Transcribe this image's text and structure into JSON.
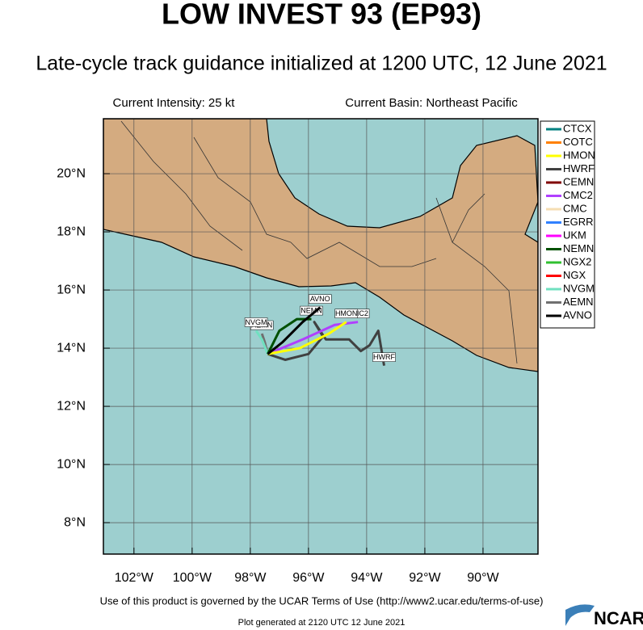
{
  "title": "LOW INVEST 93 (EP93)",
  "subtitle": "Late-cycle track guidance initialized at 1200 UTC, 12 June 2021",
  "intensity": "Current Intensity: 25 kt",
  "basin": "Current Basin: Northeast Pacific",
  "lonlim": [
    -103.05,
    -88.11
  ],
  "latlim": [
    6.92,
    21.89
  ],
  "lonticks": [
    {
      "value": -102,
      "label": "102°W"
    },
    {
      "value": -100,
      "label": "100°W"
    },
    {
      "value": -98,
      "label": "98°W"
    },
    {
      "value": -96,
      "label": "96°W"
    },
    {
      "value": -94,
      "label": "94°W"
    },
    {
      "value": -92,
      "label": "92°W"
    },
    {
      "value": -90,
      "label": "90°W"
    }
  ],
  "latticks": [
    {
      "value": 8,
      "label": "8°N"
    },
    {
      "value": 10,
      "label": "10°N"
    },
    {
      "value": 12,
      "label": "12°N"
    },
    {
      "value": 14,
      "label": "14°N"
    },
    {
      "value": 16,
      "label": "16°N"
    },
    {
      "value": 18,
      "label": "18°N"
    },
    {
      "value": 20,
      "label": "20°N"
    }
  ],
  "models": [
    {
      "name": "CTCX",
      "color": "#008080"
    },
    {
      "name": "COTC",
      "color": "#ff8000"
    },
    {
      "name": "HMON",
      "color": "#ffff00"
    },
    {
      "name": "HWRF",
      "color": "#404040"
    },
    {
      "name": "CEMN",
      "color": "#800000"
    },
    {
      "name": "CMC2",
      "color": "#b040ff"
    },
    {
      "name": "CMC",
      "color": "#f5deb3"
    },
    {
      "name": "EGRR",
      "color": "#3080ff"
    },
    {
      "name": "UKM",
      "color": "#ff00ff"
    },
    {
      "name": "NEMN",
      "color": "#005000"
    },
    {
      "name": "NGX2",
      "color": "#30c030"
    },
    {
      "name": "NGX",
      "color": "#ff0000"
    },
    {
      "name": "NVGM",
      "color": "#70e0c0"
    },
    {
      "name": "AEMN",
      "color": "#707070"
    },
    {
      "name": "AVNO",
      "color": "#000000"
    }
  ],
  "tracks": [
    {
      "model": 3,
      "lon": [
        -97.4,
        -96.8,
        -96.0,
        -95.5,
        -95.8,
        -95.4,
        -94.6,
        -94.2,
        -93.9,
        -93.6,
        -93.4
      ],
      "lat": [
        13.8,
        13.6,
        13.8,
        14.4,
        14.9,
        14.3,
        14.3,
        13.9,
        14.1,
        14.6,
        13.4
      ]
    },
    {
      "model": 13,
      "lon": [
        -97.4,
        -97.5,
        -97.6
      ],
      "lat": [
        13.8,
        14.2,
        14.5
      ]
    },
    {
      "model": 12,
      "lon": [
        -97.4,
        -97.6,
        -97.8
      ],
      "lat": [
        13.8,
        14.3,
        14.6
      ]
    },
    {
      "model": 9,
      "lon": [
        -97.4,
        -97.0,
        -96.4,
        -95.9
      ],
      "lat": [
        13.8,
        14.6,
        15.0,
        15.0
      ]
    },
    {
      "model": 5,
      "lon": [
        -97.4,
        -96.2,
        -95.1,
        -94.3
      ],
      "lat": [
        13.8,
        14.3,
        14.8,
        14.9
      ]
    },
    {
      "model": 2,
      "lon": [
        -97.4,
        -96.3,
        -95.3,
        -94.7
      ],
      "lat": [
        13.8,
        14.0,
        14.5,
        14.9
      ]
    },
    {
      "model": 14,
      "lon": [
        -97.4,
        -96.9,
        -96.2,
        -95.6
      ],
      "lat": [
        13.8,
        14.2,
        14.9,
        15.4
      ]
    }
  ],
  "terms": "Use of this product is governed by the UCAR Terms of Use (http://www2.ucar.edu/terms-of-use)",
  "generated": "Plot generated at 2120 UTC   12 June 2021",
  "logo": "NCAR"
}
